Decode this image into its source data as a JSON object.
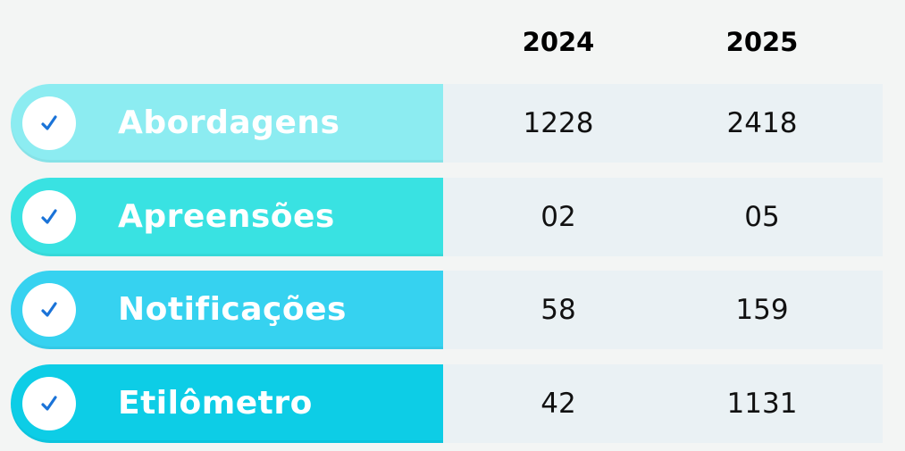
{
  "chart_data": {
    "type": "table",
    "columns": [
      "2024",
      "2025"
    ],
    "rows": [
      {
        "label": "Abordagens",
        "values": [
          "1228",
          "2418"
        ],
        "color": "#8cecf1"
      },
      {
        "label": "Apreensões",
        "values": [
          "02",
          "05"
        ],
        "color": "#39e2e2"
      },
      {
        "label": "Notificações",
        "values": [
          "58",
          "159"
        ],
        "color": "#36d2f0"
      },
      {
        "label": "Etilômetro",
        "values": [
          "42",
          "1131"
        ],
        "color": "#0dcde6"
      }
    ],
    "colors": {
      "check": "#1a73d8",
      "cell_background": "#eaf1f4",
      "label_text": "#ffffff"
    },
    "icons": {
      "row_marker": "checkmark-icon"
    }
  }
}
